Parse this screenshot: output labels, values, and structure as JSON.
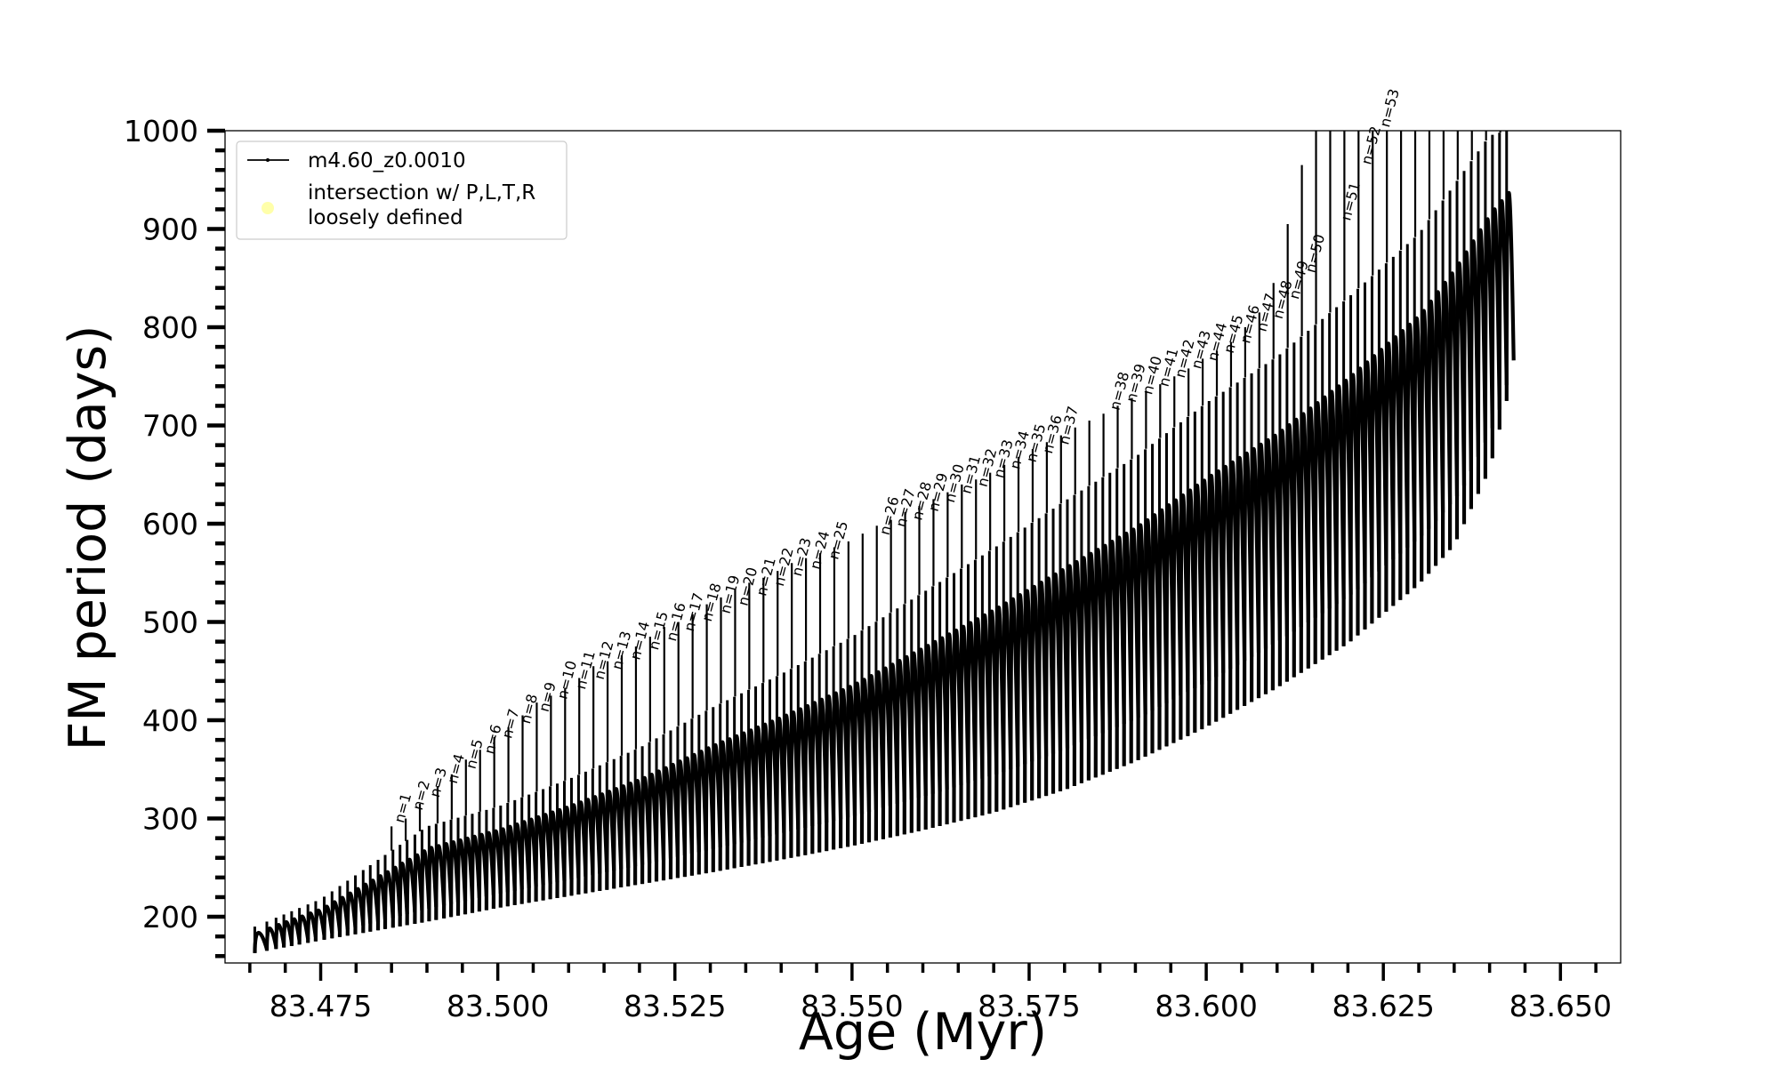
{
  "chart_data": {
    "type": "line",
    "title": "",
    "xlabel": "Age (Myr)",
    "ylabel": "FM period (days)",
    "xlim": [
      83.4615,
      83.6585
    ],
    "ylim": [
      153,
      1000
    ],
    "xticks": [
      "83.475",
      "83.500",
      "83.525",
      "83.550",
      "83.575",
      "83.600",
      "83.625",
      "83.650"
    ],
    "yticks": [
      "200",
      "300",
      "400",
      "500",
      "600",
      "700",
      "800",
      "900",
      "1000"
    ],
    "grid": false,
    "legend_position": "upper-left",
    "legend": [
      {
        "label": "m4.60_z0.0010",
        "marker": "line-with-dots",
        "color": "#000000"
      },
      {
        "label": "intersection w/ P,L,T,R\nloosely defined",
        "marker": "circle",
        "color": "#ffffaa"
      }
    ],
    "series": [
      {
        "name": "m4.60_z0.0010",
        "color": "#000000",
        "pulse_ages": [
          83.4657,
          83.4674,
          83.4687,
          83.4698,
          83.4709,
          83.472,
          83.4732,
          83.4743,
          83.4755,
          83.4766,
          83.4777,
          83.4788,
          83.4799,
          83.481,
          83.482,
          83.4831,
          83.4841,
          83.4852,
          83.4862,
          83.4872,
          83.4883,
          83.4893,
          83.4903,
          83.4913,
          83.4924,
          83.4934,
          83.4944,
          83.4954,
          83.4964,
          83.4974,
          83.4984,
          83.4994,
          83.5004,
          83.5014,
          83.5024,
          83.5034,
          83.5044,
          83.5054,
          83.5064,
          83.5074,
          83.5084,
          83.5094,
          83.5104,
          83.5114,
          83.5124,
          83.5134,
          83.5144,
          83.5154,
          83.5164,
          83.5174,
          83.5184,
          83.5194,
          83.5204,
          83.5214,
          83.5224,
          83.5234,
          83.5244,
          83.5254,
          83.5264,
          83.5274,
          83.5284,
          83.5294,
          83.5304,
          83.5314,
          83.5324,
          83.5334,
          83.5344,
          83.5354,
          83.5364,
          83.5374,
          83.5384,
          83.5394,
          83.5404,
          83.5414,
          83.5424,
          83.5434,
          83.5444,
          83.5454,
          83.5464,
          83.5474,
          83.5484,
          83.5494,
          83.5504,
          83.5514,
          83.5524,
          83.5534,
          83.5544,
          83.5554,
          83.5564,
          83.5574,
          83.5584,
          83.5594,
          83.5604,
          83.5614,
          83.5624,
          83.5634,
          83.5644,
          83.5654,
          83.5664,
          83.5674,
          83.5684,
          83.5694,
          83.5704,
          83.5714,
          83.5724,
          83.5734,
          83.5744,
          83.5754,
          83.5764,
          83.5774,
          83.5784,
          83.5794,
          83.5804,
          83.5814,
          83.5824,
          83.5834,
          83.5844,
          83.5854,
          83.5864,
          83.5874,
          83.5884,
          83.5894,
          83.5904,
          83.5914,
          83.5924,
          83.5934,
          83.5944,
          83.5954,
          83.5964,
          83.5974,
          83.5984,
          83.5994,
          83.6004,
          83.6014,
          83.6024,
          83.6034,
          83.6044,
          83.6054,
          83.6064,
          83.6074,
          83.6084,
          83.6094,
          83.6104,
          83.6114,
          83.6124,
          83.6134,
          83.6144,
          83.6154,
          83.6164,
          83.6174,
          83.6184,
          83.6194,
          83.6204,
          83.6214,
          83.6224,
          83.6234,
          83.6244,
          83.6254,
          83.6264,
          83.6274,
          83.6284,
          83.6294,
          83.6304,
          83.6314,
          83.6324,
          83.6334,
          83.6344,
          83.6354,
          83.6364,
          83.6374,
          83.6384,
          83.6394,
          83.6404,
          83.6414,
          83.6424
        ],
        "lower_envelope": [
          [
            83.4657,
            163
          ],
          [
            83.475,
            176
          ],
          [
            83.49,
            195
          ],
          [
            83.5,
            209
          ],
          [
            83.51,
            221
          ],
          [
            83.52,
            233
          ],
          [
            83.53,
            245
          ],
          [
            83.54,
            258
          ],
          [
            83.55,
            272
          ],
          [
            83.56,
            288
          ],
          [
            83.57,
            306
          ],
          [
            83.58,
            329
          ],
          [
            83.59,
            358
          ],
          [
            83.6,
            393
          ],
          [
            83.61,
            433
          ],
          [
            83.62,
            478
          ],
          [
            83.63,
            538
          ],
          [
            83.635,
            578
          ],
          [
            83.64,
            655
          ],
          [
            83.6424,
            725
          ]
        ],
        "upper_envelope": [
          [
            83.4657,
            190
          ],
          [
            83.475,
            218
          ],
          [
            83.49,
            292
          ],
          [
            83.5,
            312
          ],
          [
            83.51,
            340
          ],
          [
            83.52,
            372
          ],
          [
            83.53,
            412
          ],
          [
            83.54,
            447
          ],
          [
            83.55,
            485
          ],
          [
            83.56,
            530
          ],
          [
            83.57,
            575
          ],
          [
            83.58,
            623
          ],
          [
            83.59,
            668
          ],
          [
            83.6,
            723
          ],
          [
            83.61,
            770
          ],
          [
            83.62,
            830
          ],
          [
            83.63,
            895
          ],
          [
            83.635,
            945
          ],
          [
            83.64,
            995
          ],
          [
            83.6424,
            1000
          ]
        ],
        "spike_tops": [
          [
            83.485,
            292
          ],
          [
            83.487,
            300
          ],
          [
            83.489,
            315
          ],
          [
            83.4915,
            333
          ],
          [
            83.4935,
            345
          ],
          [
            83.4955,
            360
          ],
          [
            83.4975,
            370
          ],
          [
            83.4995,
            383
          ],
          [
            83.5015,
            393
          ],
          [
            83.5035,
            405
          ],
          [
            83.5055,
            418
          ],
          [
            83.5075,
            425
          ],
          [
            83.5095,
            433
          ],
          [
            83.5115,
            443
          ],
          [
            83.5135,
            455
          ],
          [
            83.5155,
            460
          ],
          [
            83.5175,
            466
          ],
          [
            83.5195,
            475
          ],
          [
            83.5215,
            485
          ],
          [
            83.5235,
            495
          ],
          [
            83.5255,
            500
          ],
          [
            83.5275,
            508
          ],
          [
            83.5295,
            518
          ],
          [
            83.5315,
            525
          ],
          [
            83.5335,
            533
          ],
          [
            83.5355,
            540
          ],
          [
            83.5375,
            545
          ],
          [
            83.5395,
            552
          ],
          [
            83.5415,
            560
          ],
          [
            83.5435,
            565
          ],
          [
            83.5455,
            570
          ],
          [
            83.5475,
            576
          ],
          [
            83.5495,
            582
          ],
          [
            83.5515,
            590
          ],
          [
            83.5535,
            598
          ],
          [
            83.5555,
            604
          ],
          [
            83.5575,
            612
          ],
          [
            83.5595,
            618
          ],
          [
            83.5615,
            625
          ],
          [
            83.5635,
            632
          ],
          [
            83.5655,
            640
          ],
          [
            83.5675,
            645
          ],
          [
            83.5695,
            652
          ],
          [
            83.5715,
            660
          ],
          [
            83.5735,
            668
          ],
          [
            83.5755,
            676
          ],
          [
            83.5775,
            683
          ],
          [
            83.5795,
            690
          ],
          [
            83.5815,
            698
          ],
          [
            83.5835,
            705
          ],
          [
            83.5855,
            712
          ],
          [
            83.5875,
            720
          ],
          [
            83.5895,
            728
          ],
          [
            83.5915,
            735
          ],
          [
            83.5935,
            742
          ],
          [
            83.5955,
            750
          ],
          [
            83.5975,
            758
          ],
          [
            83.5995,
            768
          ],
          [
            83.6015,
            776
          ],
          [
            83.6035,
            785
          ],
          [
            83.6055,
            800
          ],
          [
            83.6075,
            815
          ],
          [
            83.6095,
            845
          ],
          [
            83.6115,
            905
          ],
          [
            83.6135,
            965
          ],
          [
            83.6155,
            1000
          ],
          [
            83.6175,
            1000
          ],
          [
            83.6195,
            1000
          ],
          [
            83.6215,
            1000
          ],
          [
            83.6235,
            1000
          ],
          [
            83.6255,
            1000
          ],
          [
            83.6275,
            1000
          ],
          [
            83.6295,
            1000
          ],
          [
            83.6315,
            1000
          ],
          [
            83.6335,
            1000
          ],
          [
            83.6355,
            1000
          ],
          [
            83.6375,
            1000
          ],
          [
            83.6395,
            1000
          ],
          [
            83.6415,
            1000
          ]
        ]
      }
    ],
    "annotations": [
      {
        "text": "n=1",
        "x": 83.4867,
        "y": 292
      },
      {
        "text": "n=2",
        "x": 83.4893,
        "y": 305
      },
      {
        "text": "n=3",
        "x": 83.4917,
        "y": 318
      },
      {
        "text": "n=4",
        "x": 83.4942,
        "y": 332
      },
      {
        "text": "n=5",
        "x": 83.4968,
        "y": 347
      },
      {
        "text": "n=6",
        "x": 83.4994,
        "y": 362
      },
      {
        "text": "n=7",
        "x": 83.5019,
        "y": 378
      },
      {
        "text": "n=8",
        "x": 83.5045,
        "y": 393
      },
      {
        "text": "n=9",
        "x": 83.5071,
        "y": 405
      },
      {
        "text": "n=10",
        "x": 83.5097,
        "y": 418
      },
      {
        "text": "n=11",
        "x": 83.5123,
        "y": 428
      },
      {
        "text": "n=12",
        "x": 83.5149,
        "y": 438
      },
      {
        "text": "n=13",
        "x": 83.5174,
        "y": 448
      },
      {
        "text": "n=14",
        "x": 83.52,
        "y": 458
      },
      {
        "text": "n=15",
        "x": 83.5226,
        "y": 468
      },
      {
        "text": "n=16",
        "x": 83.5251,
        "y": 477
      },
      {
        "text": "n=17",
        "x": 83.5276,
        "y": 487
      },
      {
        "text": "n=18",
        "x": 83.5301,
        "y": 497
      },
      {
        "text": "n=19",
        "x": 83.5327,
        "y": 505
      },
      {
        "text": "n=20",
        "x": 83.5352,
        "y": 513
      },
      {
        "text": "n=21",
        "x": 83.5378,
        "y": 523
      },
      {
        "text": "n=22",
        "x": 83.5403,
        "y": 533
      },
      {
        "text": "n=23",
        "x": 83.5428,
        "y": 543
      },
      {
        "text": "n=24",
        "x": 83.5454,
        "y": 550
      },
      {
        "text": "n=25",
        "x": 83.548,
        "y": 560
      },
      {
        "text": "n=26",
        "x": 83.5552,
        "y": 585
      },
      {
        "text": "n=27",
        "x": 83.5575,
        "y": 593
      },
      {
        "text": "n=28",
        "x": 83.5598,
        "y": 600
      },
      {
        "text": "n=29",
        "x": 83.5621,
        "y": 609
      },
      {
        "text": "n=30",
        "x": 83.5644,
        "y": 618
      },
      {
        "text": "n=31",
        "x": 83.5667,
        "y": 627
      },
      {
        "text": "n=32",
        "x": 83.569,
        "y": 634
      },
      {
        "text": "n=33",
        "x": 83.5713,
        "y": 643
      },
      {
        "text": "n=34",
        "x": 83.5736,
        "y": 652
      },
      {
        "text": "n=35",
        "x": 83.5759,
        "y": 659
      },
      {
        "text": "n=36",
        "x": 83.5782,
        "y": 668
      },
      {
        "text": "n=37",
        "x": 83.5805,
        "y": 677
      },
      {
        "text": "n=38",
        "x": 83.5877,
        "y": 712
      },
      {
        "text": "n=39",
        "x": 83.59,
        "y": 720
      },
      {
        "text": "n=40",
        "x": 83.5923,
        "y": 728
      },
      {
        "text": "n=41",
        "x": 83.5946,
        "y": 736
      },
      {
        "text": "n=42",
        "x": 83.5969,
        "y": 745
      },
      {
        "text": "n=43",
        "x": 83.5992,
        "y": 754
      },
      {
        "text": "n=44",
        "x": 83.6015,
        "y": 762
      },
      {
        "text": "n=45",
        "x": 83.6038,
        "y": 770
      },
      {
        "text": "n=46",
        "x": 83.6061,
        "y": 780
      },
      {
        "text": "n=47",
        "x": 83.6084,
        "y": 792
      },
      {
        "text": "n=48",
        "x": 83.6107,
        "y": 805
      },
      {
        "text": "n=49",
        "x": 83.613,
        "y": 825
      },
      {
        "text": "n=50",
        "x": 83.6153,
        "y": 852
      },
      {
        "text": "n=51",
        "x": 83.6203,
        "y": 905
      },
      {
        "text": "n=52",
        "x": 83.6232,
        "y": 962
      },
      {
        "text": "n=53",
        "x": 83.6258,
        "y": 1000
      }
    ]
  }
}
